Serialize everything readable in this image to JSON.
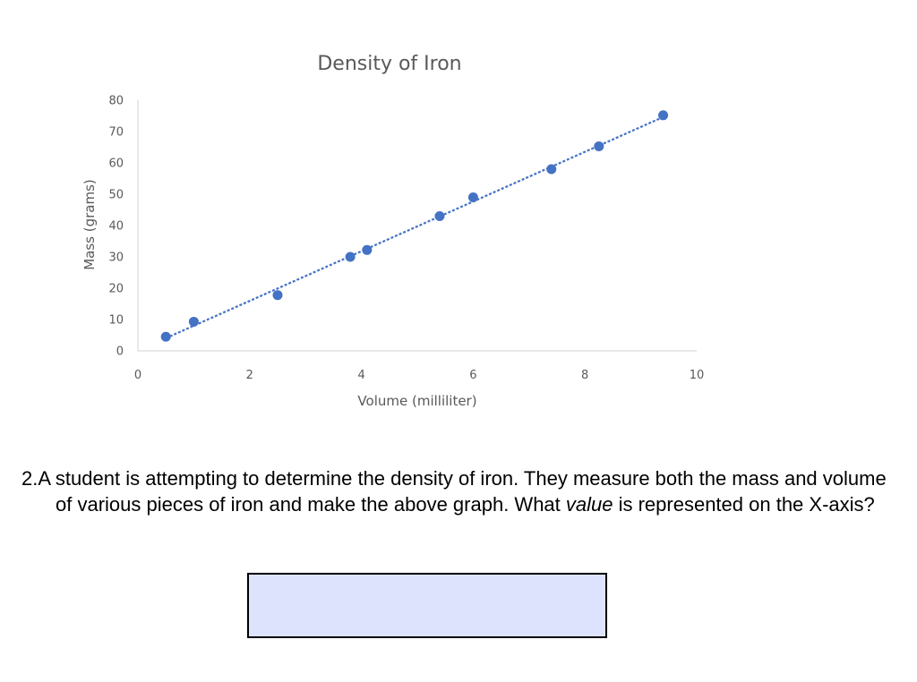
{
  "chart_data": {
    "type": "scatter",
    "title": "Density of Iron",
    "xlabel": "Volume (milliliter)",
    "ylabel": "Mass (grams)",
    "xlim": [
      0,
      10
    ],
    "ylim": [
      0,
      80
    ],
    "xticks": [
      "0",
      "2",
      "4",
      "6",
      "8",
      "10"
    ],
    "yticks": [
      "0",
      "10",
      "20",
      "30",
      "40",
      "50",
      "60",
      "70",
      "80"
    ],
    "grid": false,
    "legend": "none",
    "trendline": "linear, dashed",
    "series": [
      {
        "color": "#4472c4",
        "points": [
          {
            "x": 0.5,
            "y": 4.5
          },
          {
            "x": 1.0,
            "y": 9.3
          },
          {
            "x": 2.5,
            "y": 17.8
          },
          {
            "x": 3.8,
            "y": 30.0
          },
          {
            "x": 4.1,
            "y": 32.2
          },
          {
            "x": 5.4,
            "y": 43.0
          },
          {
            "x": 6.0,
            "y": 49.0
          },
          {
            "x": 7.4,
            "y": 58.0
          },
          {
            "x": 8.25,
            "y": 65.3
          },
          {
            "x": 9.4,
            "y": 75.2
          }
        ]
      }
    ]
  },
  "question": {
    "number": "2.",
    "text_before": "A student is attempting to determine the density of iron. They measure both the mass and volume of various pieces of iron and make the above graph. What ",
    "emphasis": "value",
    "text_after": " is represented on the X-axis?"
  },
  "answer": {
    "value": ""
  },
  "colors": {
    "marker": "#4472c4",
    "answer_box_fill": "#dde3fd",
    "axis": "#d9d9d9",
    "text": "#595959"
  }
}
